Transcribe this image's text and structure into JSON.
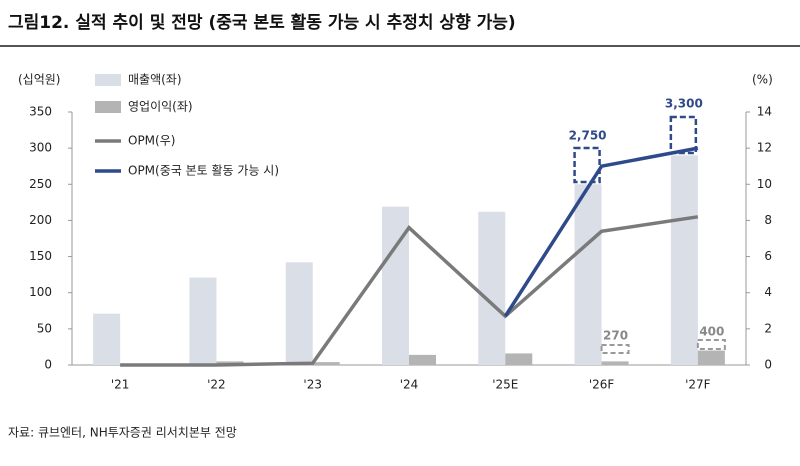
{
  "chart_data": {
    "type": "bar-line",
    "title": "그림12. 실적 추이 및 전망 (중국 본토 활동 가능 시 추정치 상향 가능)",
    "y_label": "(십억원)",
    "y2_label": "(%)",
    "source": "자료: 큐브엔터, NH투자증권 리서치본부 전망",
    "categories": [
      "'21",
      "'22",
      "'23",
      "'24",
      "'25E",
      "'26F",
      "'27F"
    ],
    "series": [
      {
        "name": "매출액(좌)",
        "type": "bar",
        "color": "#d9dee7",
        "values": [
          71,
          121,
          142,
          219,
          212,
          250,
          290
        ]
      },
      {
        "name": "영업이익(좌)",
        "type": "bar",
        "color": "#b4b4b4",
        "values": [
          1,
          5,
          4,
          14,
          16,
          5,
          20
        ]
      },
      {
        "name": "OPM(우)",
        "type": "line",
        "axis": "y2",
        "color": "#7a7a7a",
        "values": [
          0,
          0,
          0.1,
          7.6,
          2.7,
          7.4,
          8.2
        ]
      },
      {
        "name": "OPM(중국 본토 활동 가능 시)",
        "type": "line",
        "axis": "y2",
        "color": "#2e4a8a",
        "values": [
          null,
          null,
          null,
          null,
          2.7,
          11.0,
          12.0
        ]
      }
    ],
    "annotations": [
      "2,750",
      "3,300",
      "270",
      "400"
    ],
    "ylim": [
      0,
      350
    ],
    "yticks": [
      0,
      50,
      100,
      150,
      200,
      250,
      300,
      350
    ],
    "y2lim": [
      0,
      14
    ],
    "y2ticks": [
      0,
      2,
      4,
      6,
      8,
      10,
      12,
      14
    ]
  }
}
